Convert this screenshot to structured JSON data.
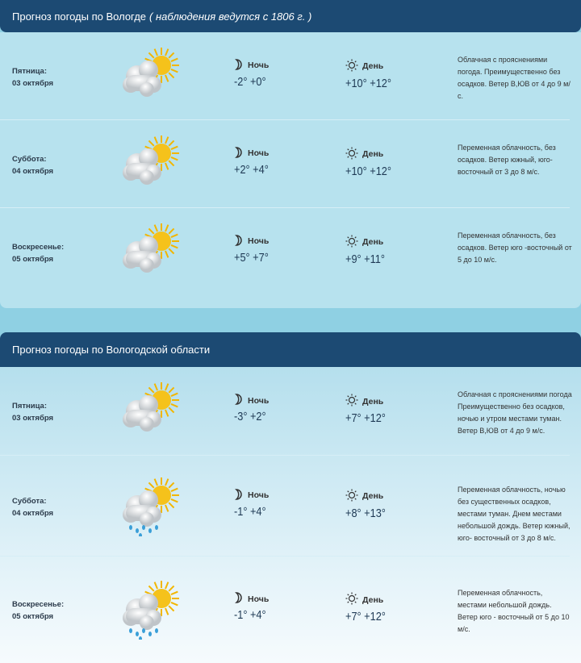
{
  "section1": {
    "title": "Прогноз погоды по Вологде",
    "subtitle": "( наблюдения ведутся с 1806 г. )",
    "days": [
      {
        "day": "Пятница:",
        "date": "03 октября",
        "icon": "sun-cloud-icon",
        "night_label": "Ночь",
        "night": "-2° +0°",
        "day_label": "День",
        "day_temp": "+10° +12°",
        "desc": "Облачная с прояснениями погода. Преимущественно без осадков. Ветер В,ЮВ от 4 до 9 м/с."
      },
      {
        "day": "Суббота:",
        "date": "04 октября",
        "icon": "sun-cloud-icon",
        "night_label": "Ночь",
        "night": "+2° +4°",
        "day_label": "День",
        "day_temp": "+10° +12°",
        "desc": "Переменная облачность, без осадков. Ветер южный, юго-восточный от 3 до 8 м/с."
      },
      {
        "day": "Воскресенье:",
        "date": "05 октября",
        "icon": "sun-cloud-icon",
        "night_label": "Ночь",
        "night": "+5° +7°",
        "day_label": "День",
        "day_temp": "+9° +11°",
        "desc": "Переменная облачность, без осадков. Ветер юго -восточный от 5 до 10 м/с."
      }
    ]
  },
  "section2": {
    "title": "Прогноз погоды по Вологодской области",
    "days": [
      {
        "day": "Пятница:",
        "date": "03 октября",
        "icon": "sun-cloud-icon",
        "night_label": "Ночь",
        "night": "-3° +2°",
        "day_label": "День",
        "day_temp": "+7° +12°",
        "desc": "Облачная с прояснениями погода Преимущественно без осадков, ночью и утром местами туман. Ветер В,ЮВ от 4 до 9 м/с."
      },
      {
        "day": "Суббота:",
        "date": "04 октября",
        "icon": "sun-cloud-rain-icon",
        "night_label": "Ночь",
        "night": "-1° +4°",
        "day_label": "День",
        "day_temp": "+8° +13°",
        "desc": "Переменная облачность, ночью без существенных осадков, местами туман. Днем местами небольшой дождь. Ветер южный, юго- восточный от 3 до 8 м/с."
      },
      {
        "day": "Воскресенье:",
        "date": "05 октября",
        "icon": "sun-cloud-rain-icon",
        "night_label": "Ночь",
        "night": "-1° +4°",
        "day_label": "День",
        "day_temp": "+7° +12°",
        "desc": "Переменная облачность, местами небольшой дождь. Ветер юго - восточный от 5 до 10 м/с."
      }
    ]
  },
  "colors": {
    "header": "#1c4a73",
    "panel": "#b7e2ee",
    "background": "#8fd0e3"
  }
}
